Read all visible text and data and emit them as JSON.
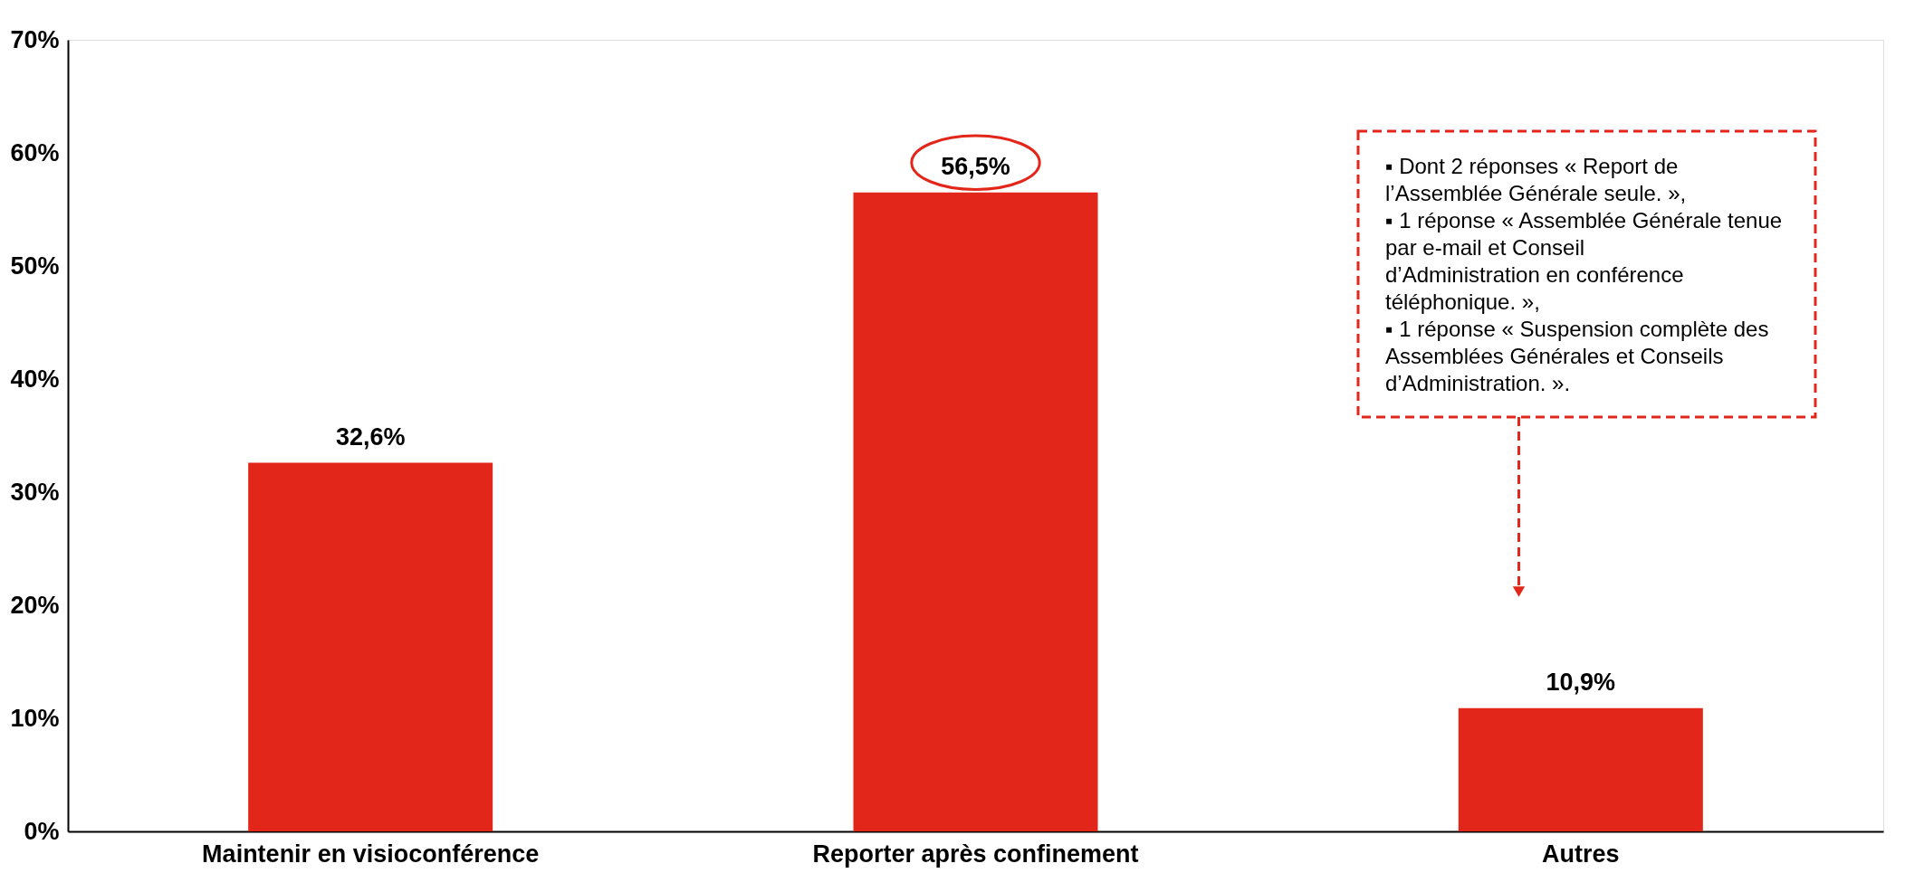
{
  "chart_data": {
    "type": "bar",
    "categories": [
      "Maintenir en visioconférence",
      "Reporter après confinement",
      "Autres"
    ],
    "values": [
      32.6,
      56.5,
      10.9
    ],
    "value_labels": [
      "32,6%",
      "56,5%",
      "10,9%"
    ],
    "color": "#e2271a",
    "ylim": [
      0,
      70
    ],
    "yticks": [
      {
        "value": 0,
        "label": "0%"
      },
      {
        "value": 10,
        "label": "10%"
      },
      {
        "value": 20,
        "label": "20%"
      },
      {
        "value": 30,
        "label": "30%"
      },
      {
        "value": 40,
        "label": "40%"
      },
      {
        "value": 50,
        "label": "50%"
      },
      {
        "value": 60,
        "label": "60%"
      },
      {
        "value": 70,
        "label": "70%"
      }
    ],
    "grid": false,
    "annotations": [
      "▪ Dont 2 réponses « Report de l’Assemblée Générale seule. »,",
      "▪ 1 réponse « Assemblée Générale tenue par e-mail et Conseil d’Administration en conférence téléphonique. »,",
      "▪ 1 réponse « Suspension complète des Assemblées Générales et Conseils d’Administration. »."
    ]
  }
}
